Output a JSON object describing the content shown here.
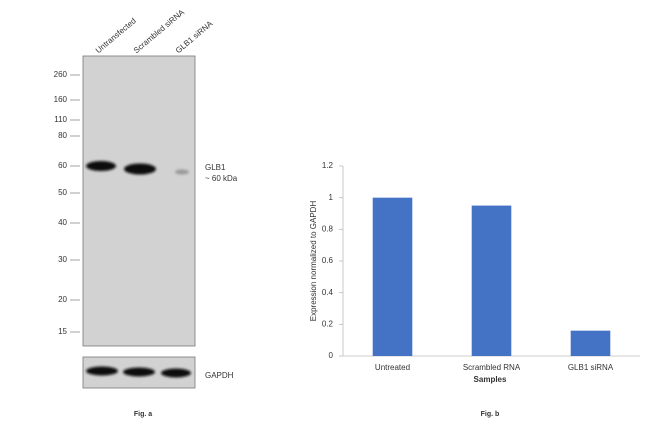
{
  "blot": {
    "lanes": [
      "Untransfected",
      "Scrambled siRNA",
      "GLB1 siRNA"
    ],
    "markers": [
      260,
      160,
      110,
      80,
      60,
      50,
      40,
      30,
      20,
      15
    ],
    "band_name": "GLB1",
    "band_size": "~ 60 kDa",
    "loading_control": "GAPDH",
    "caption": "Fig. a"
  },
  "chart_data": {
    "type": "bar",
    "caption": "Fig. b",
    "x_label": "Samples",
    "y_label": "Expression normalized to GAPDH",
    "categories": [
      "Untreated",
      "Scrambled RNA",
      "GLB1 siRNA"
    ],
    "values": [
      1,
      0.95,
      0.16
    ],
    "color": "#4472c4",
    "ylim": [
      0,
      1.2
    ],
    "yticks": [
      0,
      0.2,
      0.4,
      0.6,
      0.8,
      1,
      1.2
    ],
    "grid": false
  }
}
